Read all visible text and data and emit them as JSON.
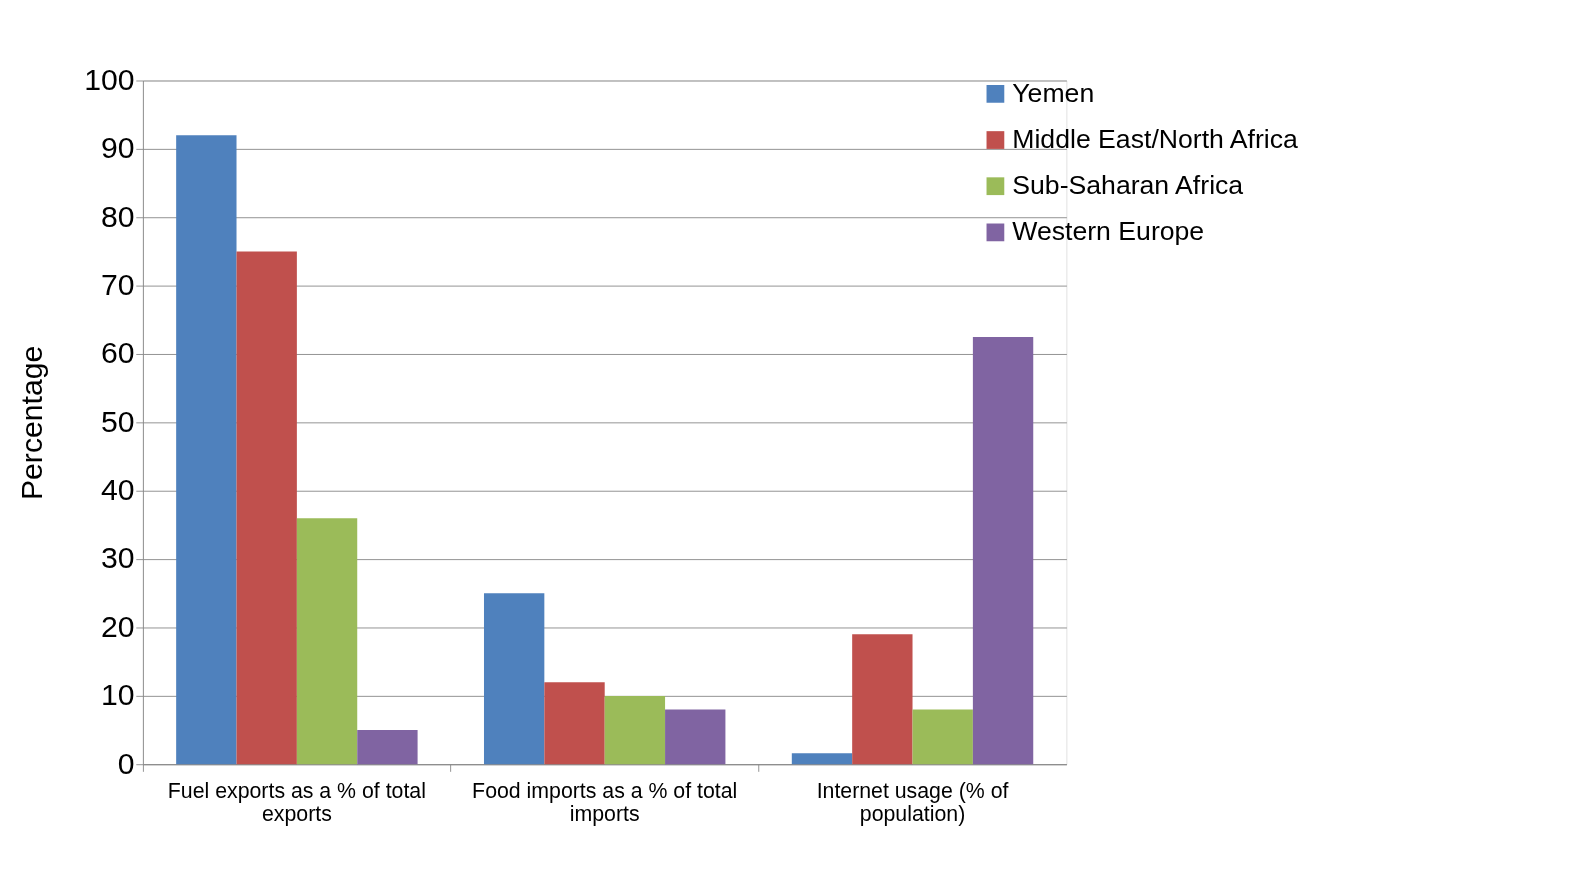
{
  "chart_data": {
    "type": "bar",
    "ylabel": "Percentage",
    "categories": [
      "Fuel exports as a % of total exports",
      "Food imports as a % of total imports",
      "Internet usage (% of population)"
    ],
    "series": [
      {
        "name": "Yemen",
        "color": "#4f81bd",
        "values": [
          92,
          25,
          1.6
        ]
      },
      {
        "name": "Middle East/North Africa",
        "color": "#c0504d",
        "values": [
          75,
          12,
          19
        ]
      },
      {
        "name": "Sub-Saharan Africa",
        "color": "#9bbb59",
        "values": [
          36,
          10,
          8
        ]
      },
      {
        "name": "Western Europe",
        "color": "#8064a2",
        "values": [
          5,
          8,
          62.5
        ]
      }
    ],
    "ylim": [
      0,
      100
    ],
    "yticks": [
      0,
      10,
      20,
      30,
      40,
      50,
      60,
      70,
      80,
      90,
      100
    ],
    "grid": "y",
    "legend": "top right"
  }
}
